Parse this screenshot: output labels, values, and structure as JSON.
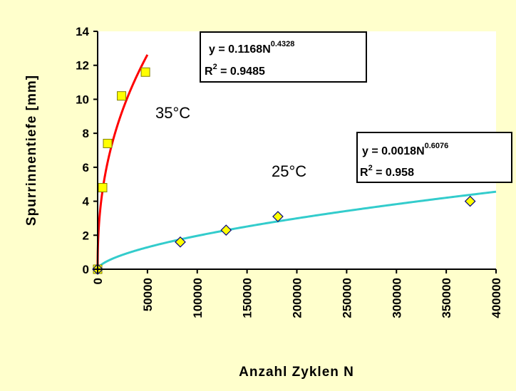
{
  "colors": {
    "page_bg": "#FFFFCC",
    "plot_bg": "#FFFFFF",
    "series_35": "#FF0000",
    "series_25": "#33CCCC",
    "marker_35": "#FFFF00",
    "marker_25": "#FFFF00",
    "marker_25_edge": "#000080",
    "marker_35_edge": "#808000"
  },
  "chart_data": {
    "type": "scatter",
    "xlabel": "Anzahl Zyklen N",
    "ylabel": "Spurrinnentiefe [mm]",
    "xlim": [
      0,
      400000
    ],
    "ylim": [
      0,
      14
    ],
    "xticks": [
      "0",
      "50000",
      "100000",
      "150000",
      "200000",
      "250000",
      "300000",
      "350000",
      "400000"
    ],
    "yticks": [
      "0",
      "2",
      "4",
      "6",
      "8",
      "10",
      "12",
      "14"
    ],
    "grid": false,
    "series": [
      {
        "name": "35°C",
        "marker": "square",
        "points": [
          [
            0,
            0
          ],
          [
            5000,
            4.8
          ],
          [
            10000,
            7.4
          ],
          [
            24000,
            10.2
          ],
          [
            48000,
            11.6
          ]
        ],
        "fit": {
          "a": 0.1168,
          "b": 0.4328,
          "x_max": 50000
        }
      },
      {
        "name": "25°C",
        "marker": "diamond",
        "points": [
          [
            0,
            0
          ],
          [
            83000,
            1.6
          ],
          [
            129000,
            2.3
          ],
          [
            181000,
            3.1
          ],
          [
            374000,
            4.0
          ]
        ],
        "fit": {
          "a": 0.0018,
          "b": 0.6076,
          "x_max": 400000
        }
      }
    ],
    "annotations": [
      {
        "id": "eq35",
        "line1_prefix": "y = 0.1168N",
        "line1_exp": "0.4328",
        "line2_prefix": "R",
        "line2_exp": "2",
        "line2_suffix": " = 0.9485"
      },
      {
        "id": "eq25",
        "line1_prefix": "y = 0.0018N",
        "line1_exp": "0.6076",
        "line2_prefix": "R",
        "line2_exp": "2",
        "line2_suffix": " = 0.958"
      }
    ]
  }
}
